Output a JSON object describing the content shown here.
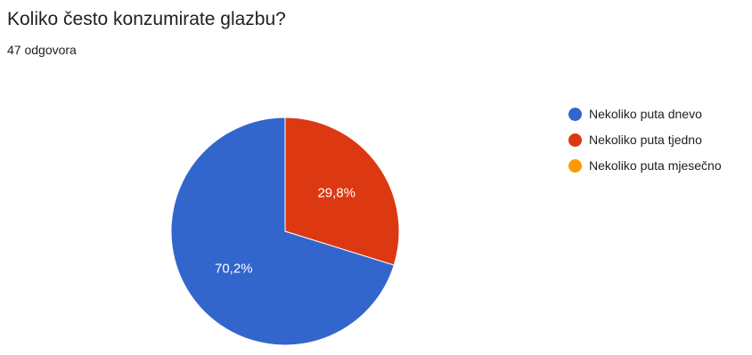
{
  "header": {
    "question": "Koliko često konzumirate glazbu?",
    "responses": "47 odgovora"
  },
  "chart_data": {
    "type": "pie",
    "categories": [
      "Nekoliko puta dnevo",
      "Nekoliko puta tjedno",
      "Nekoliko puta mjesečno"
    ],
    "values": [
      70.2,
      29.8,
      0
    ],
    "labels": [
      "70,2%",
      "29,8%",
      ""
    ],
    "colors": [
      "#3366cc",
      "#dc3912",
      "#ff9900"
    ],
    "legend": "right",
    "title": "Koliko često konzumirate glazbu?"
  }
}
